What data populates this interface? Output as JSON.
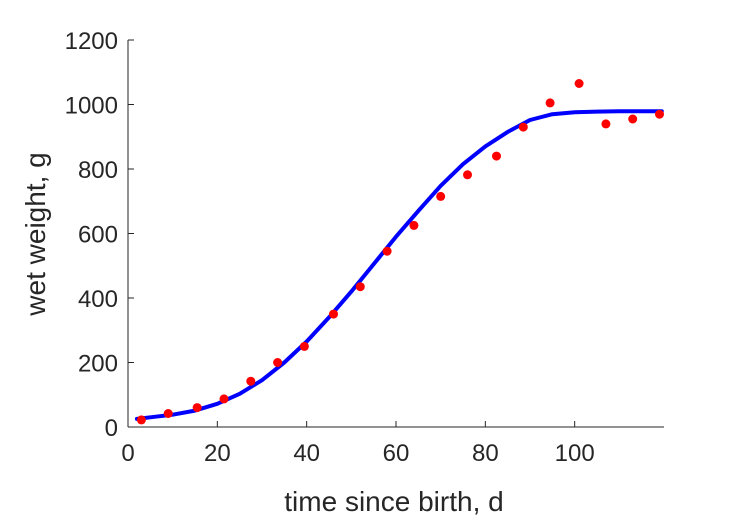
{
  "chart_data": {
    "type": "scatter",
    "title": "",
    "xlabel": "time since birth, d",
    "ylabel": "wet weight, g",
    "xlim": [
      0,
      120
    ],
    "ylim": [
      0,
      1200
    ],
    "x_ticks": [
      0,
      20,
      40,
      60,
      80,
      100
    ],
    "y_ticks": [
      0,
      200,
      400,
      600,
      800,
      1000,
      1200
    ],
    "grid": false,
    "legend": "none",
    "colors": {
      "points": "#ff0000",
      "fit": "#0000ff",
      "axes": "#262626"
    },
    "series": [
      {
        "kind": "scatter",
        "x": [
          3,
          9,
          15.5,
          21.5,
          27.5,
          33.5,
          39.5,
          46,
          52,
          58,
          64,
          70,
          76,
          82.5,
          88.5,
          94.5,
          101,
          107,
          113,
          119
        ],
        "y": [
          22,
          42,
          60,
          87,
          142,
          200,
          250,
          350,
          435,
          545,
          625,
          715,
          782,
          840,
          930,
          1005,
          1065,
          940,
          955,
          970
        ]
      },
      {
        "kind": "line",
        "x": [
          2,
          5,
          10,
          15,
          20,
          25,
          30,
          35,
          40,
          45,
          50,
          55,
          60,
          65,
          70,
          75,
          80,
          85,
          90,
          95,
          100,
          105,
          110,
          115,
          119.5
        ],
        "y": [
          25,
          30,
          38,
          51,
          72,
          103,
          145,
          200,
          265,
          340,
          420,
          505,
          590,
          670,
          748,
          815,
          870,
          915,
          952,
          970,
          976,
          978,
          979,
          979,
          979
        ]
      }
    ]
  }
}
